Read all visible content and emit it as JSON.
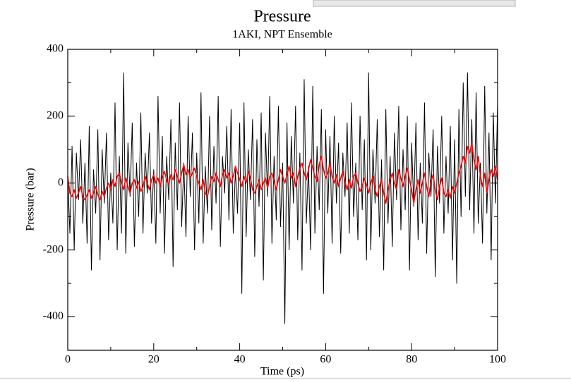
{
  "chart_data": {
    "type": "line",
    "title": "Pressure",
    "subtitle": "1AKI, NPT Ensemble",
    "x_label": "Time (ps)",
    "y_label": "Pressure (bar)",
    "xlim": [
      0,
      100
    ],
    "ylim": [
      -500,
      400
    ],
    "xticks": [
      0,
      20,
      40,
      60,
      80,
      100
    ],
    "yticks": [
      -400,
      -200,
      0,
      200,
      400
    ],
    "xticks_minor": [
      10,
      30,
      50,
      70,
      90
    ],
    "yticks_minor": [
      -300,
      -100,
      100,
      300
    ],
    "x": [
      0,
      0.5,
      1,
      1.5,
      2,
      2.5,
      3,
      3.5,
      4,
      4.5,
      5,
      5.5,
      6,
      6.5,
      7,
      7.5,
      8,
      8.5,
      9,
      9.5,
      10,
      10.5,
      11,
      11.5,
      12,
      12.5,
      13,
      13.5,
      14,
      14.5,
      15,
      15.5,
      16,
      16.5,
      17,
      17.5,
      18,
      18.5,
      19,
      19.5,
      20,
      20.5,
      21,
      21.5,
      22,
      22.5,
      23,
      23.5,
      24,
      24.5,
      25,
      25.5,
      26,
      26.5,
      27,
      27.5,
      28,
      28.5,
      29,
      29.5,
      30,
      30.5,
      31,
      31.5,
      32,
      32.5,
      33,
      33.5,
      34,
      34.5,
      35,
      35.5,
      36,
      36.5,
      37,
      37.5,
      38,
      38.5,
      39,
      39.5,
      40,
      40.5,
      41,
      41.5,
      42,
      42.5,
      43,
      43.5,
      44,
      44.5,
      45,
      45.5,
      46,
      46.5,
      47,
      47.5,
      48,
      48.5,
      49,
      49.5,
      50,
      50.5,
      51,
      51.5,
      52,
      52.5,
      53,
      53.5,
      54,
      54.5,
      55,
      55.5,
      56,
      56.5,
      57,
      57.5,
      58,
      58.5,
      59,
      59.5,
      60,
      60.5,
      61,
      61.5,
      62,
      62.5,
      63,
      63.5,
      64,
      64.5,
      65,
      65.5,
      66,
      66.5,
      67,
      67.5,
      68,
      68.5,
      69,
      69.5,
      70,
      70.5,
      71,
      71.5,
      72,
      72.5,
      73,
      73.5,
      74,
      74.5,
      75,
      75.5,
      76,
      76.5,
      77,
      77.5,
      78,
      78.5,
      79,
      79.5,
      80,
      80.5,
      81,
      81.5,
      82,
      82.5,
      83,
      83.5,
      84,
      84.5,
      85,
      85.5,
      86,
      86.5,
      87,
      87.5,
      88,
      88.5,
      89,
      89.5,
      90,
      90.5,
      91,
      91.5,
      92,
      92.5,
      93,
      93.5,
      94,
      94.5,
      95,
      95.5,
      96,
      96.5,
      97,
      97.5,
      98,
      98.5,
      99,
      99.5,
      100
    ],
    "series": [
      {
        "color": "#000000",
        "values": [
          20,
          -150,
          110,
          -200,
          90,
          -50,
          130,
          -120,
          60,
          -180,
          170,
          -260,
          40,
          -90,
          160,
          -230,
          100,
          -60,
          150,
          -170,
          30,
          -120,
          240,
          -200,
          80,
          -150,
          330,
          -210,
          120,
          -40,
          180,
          -190,
          60,
          -100,
          210,
          -150,
          90,
          -30,
          150,
          -120,
          40,
          -180,
          260,
          -90,
          140,
          -210,
          80,
          -50,
          190,
          -250,
          120,
          -80,
          240,
          -130,
          60,
          -160,
          200,
          -40,
          150,
          -200,
          90,
          -120,
          270,
          -180,
          50,
          -90,
          200,
          -140,
          110,
          -60,
          260,
          -190,
          80,
          -30,
          170,
          -110,
          220,
          -150,
          40,
          -90,
          180,
          -330,
          240,
          -160,
          100,
          -50,
          190,
          -220,
          130,
          -70,
          210,
          -290,
          150,
          -40,
          260,
          -180,
          80,
          -110,
          230,
          -130,
          60,
          -420,
          180,
          -200,
          140,
          -60,
          230,
          -170,
          90,
          -260,
          310,
          -120,
          50,
          -200,
          290,
          -150,
          110,
          -80,
          220,
          -330,
          160,
          -90,
          140,
          -180,
          200,
          -60,
          120,
          -210,
          90,
          -40,
          180,
          -150,
          240,
          -100,
          60,
          -170,
          200,
          -80,
          130,
          -230,
          330,
          -200,
          100,
          -60,
          190,
          -160,
          70,
          -260,
          220,
          -120,
          80,
          -190,
          150,
          -50,
          230,
          -140,
          100,
          -80,
          200,
          -260,
          120,
          -70,
          180,
          -170,
          60,
          -120,
          240,
          -210,
          90,
          -40,
          160,
          -280,
          110,
          -60,
          200,
          -150,
          80,
          -90,
          170,
          -230,
          130,
          -300,
          220,
          -100,
          300,
          -40,
          330,
          -80,
          190,
          -150,
          270,
          -120,
          60,
          -180,
          290,
          -90,
          150,
          -230,
          210,
          -60,
          240
        ]
      },
      {
        "color": "#ff0000",
        "values": [
          20,
          -30,
          -40,
          -20,
          -45,
          -30,
          -10,
          -40,
          -50,
          -35,
          -20,
          -45,
          -30,
          -10,
          -35,
          -50,
          -25,
          -40,
          -15,
          0,
          -20,
          10,
          -10,
          20,
          30,
          0,
          -20,
          15,
          -10,
          -30,
          0,
          10,
          -15,
          5,
          -25,
          -10,
          20,
          0,
          -20,
          10,
          25,
          0,
          15,
          -10,
          20,
          35,
          10,
          -5,
          25,
          10,
          40,
          20,
          0,
          30,
          55,
          25,
          40,
          15,
          30,
          45,
          20,
          0,
          -20,
          10,
          -30,
          -40,
          -10,
          20,
          5,
          30,
          10,
          -10,
          25,
          40,
          15,
          30,
          0,
          20,
          50,
          30,
          10,
          -10,
          20,
          0,
          35,
          15,
          -20,
          -30,
          -10,
          10,
          -20,
          0,
          15,
          -15,
          20,
          30,
          5,
          -20,
          10,
          40,
          20,
          0,
          25,
          50,
          15,
          30,
          -10,
          20,
          45,
          60,
          30,
          10,
          40,
          70,
          45,
          20,
          5,
          55,
          80,
          40,
          15,
          30,
          60,
          20,
          0,
          25,
          -10,
          15,
          35,
          5,
          -20,
          10,
          -15,
          20,
          30,
          0,
          -25,
          -10,
          15,
          -5,
          -30,
          0,
          20,
          -20,
          -40,
          -10,
          10,
          -30,
          -60,
          -20,
          10,
          30,
          0,
          -20,
          40,
          15,
          -10,
          20,
          45,
          10,
          -20,
          -60,
          -20,
          10,
          -30,
          0,
          30,
          -10,
          -40,
          5,
          25,
          -20,
          -50,
          -10,
          15,
          -30,
          -40,
          -20,
          -45,
          -10,
          -30,
          0,
          30,
          50,
          80,
          60,
          110,
          90,
          120,
          70,
          40,
          80,
          20,
          -10,
          30,
          -30,
          10,
          40,
          20,
          50,
          10
        ]
      }
    ]
  }
}
